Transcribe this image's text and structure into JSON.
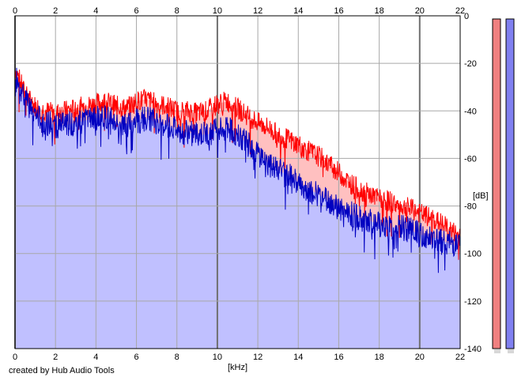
{
  "chart_data": {
    "type": "area",
    "xlabel": "[kHz]",
    "ylabel": "[dB]",
    "xlim": [
      0,
      22
    ],
    "ylim": [
      -140,
      0
    ],
    "x_ticks": [
      0,
      2,
      4,
      6,
      8,
      10,
      12,
      14,
      16,
      18,
      20,
      22
    ],
    "y_ticks": [
      0,
      -20,
      -40,
      -60,
      -80,
      -100,
      -120,
      -140
    ],
    "grid": true,
    "series": [
      {
        "color": "#ff0000",
        "fill": "#ffc0c0",
        "x": [
          0,
          0.5,
          1,
          1.5,
          2,
          2.5,
          3,
          3.5,
          4,
          4.5,
          5,
          5.5,
          6,
          6.5,
          7,
          7.5,
          8,
          8.5,
          9,
          9.5,
          10,
          10.5,
          11,
          11.5,
          12,
          12.5,
          13,
          13.5,
          14,
          14.5,
          15,
          15.5,
          16,
          16.5,
          17,
          17.5,
          18,
          18.5,
          19,
          19.5,
          20,
          20.5,
          21,
          21.5,
          22
        ],
        "values": [
          -22,
          -33,
          -38,
          -40,
          -41,
          -40,
          -39,
          -38,
          -37,
          -36,
          -38,
          -39,
          -36,
          -35,
          -37,
          -38,
          -40,
          -40,
          -41,
          -40,
          -37,
          -36,
          -39,
          -42,
          -45,
          -47,
          -50,
          -52,
          -54,
          -57,
          -59,
          -62,
          -66,
          -70,
          -73,
          -75,
          -77,
          -78,
          -80,
          -81,
          -83,
          -85,
          -87,
          -90,
          -93
        ]
      },
      {
        "color": "#0000c0",
        "fill": "#c0c0ff",
        "x": [
          0,
          0.5,
          1,
          1.5,
          2,
          2.5,
          3,
          3.5,
          4,
          4.5,
          5,
          5.5,
          6,
          6.5,
          7,
          7.5,
          8,
          8.5,
          9,
          9.5,
          10,
          10.5,
          11,
          11.5,
          12,
          12.5,
          13,
          13.5,
          14,
          14.5,
          15,
          15.5,
          16,
          16.5,
          17,
          17.5,
          18,
          18.5,
          19,
          19.5,
          20,
          20.5,
          21,
          21.5,
          22
        ],
        "values": [
          -24,
          -36,
          -42,
          -45,
          -46,
          -46,
          -45,
          -44,
          -43,
          -43,
          -45,
          -46,
          -44,
          -43,
          -45,
          -46,
          -48,
          -49,
          -50,
          -50,
          -48,
          -47,
          -50,
          -54,
          -58,
          -62,
          -65,
          -67,
          -70,
          -73,
          -75,
          -78,
          -81,
          -83,
          -85,
          -86,
          -88,
          -89,
          -89,
          -90,
          -92,
          -93,
          -94,
          -96,
          -97
        ]
      }
    ],
    "meters": [
      {
        "color": "#f08080",
        "value": 0
      },
      {
        "color": "#8080f0",
        "value": 0
      }
    ]
  },
  "footer": {
    "credit": "created by Hub Audio Tools"
  }
}
